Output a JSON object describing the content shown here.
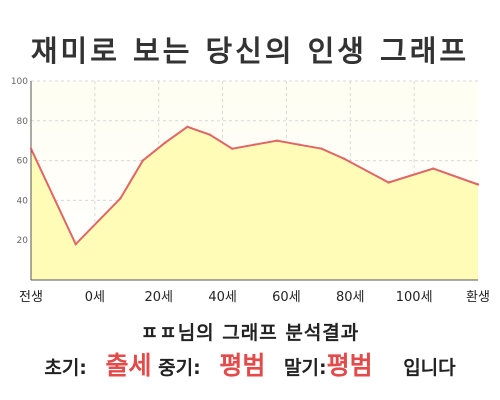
{
  "title": "재미로 보는 당신의 인생 그래프",
  "chart_data": {
    "type": "area",
    "x": [
      0,
      10,
      20,
      25,
      30,
      35,
      40,
      45,
      50,
      55,
      60,
      65,
      70,
      80,
      90,
      100
    ],
    "values": [
      66,
      18,
      41,
      60,
      69,
      77,
      73,
      66,
      68,
      70,
      68,
      66,
      61,
      49,
      56,
      48
    ],
    "x_ticks": [
      "전생",
      "0세",
      "20세",
      "40세",
      "60세",
      "80세",
      "100세",
      "환생"
    ],
    "y_ticks": [
      "20",
      "40",
      "60",
      "80",
      "100"
    ],
    "ylim": [
      0,
      100
    ],
    "grid": true,
    "line_color": "#e06666",
    "fill_color": "#fffcb8"
  },
  "summary": {
    "name": "ㅍㅍ",
    "text": "님의 그래프 분석결과"
  },
  "result": {
    "early_label": "초기:",
    "early_value": "출세",
    "mid_label": "중기:",
    "mid_value": "평범",
    "late_label": "말기:",
    "late_value": "평범",
    "ending": "입니다"
  }
}
